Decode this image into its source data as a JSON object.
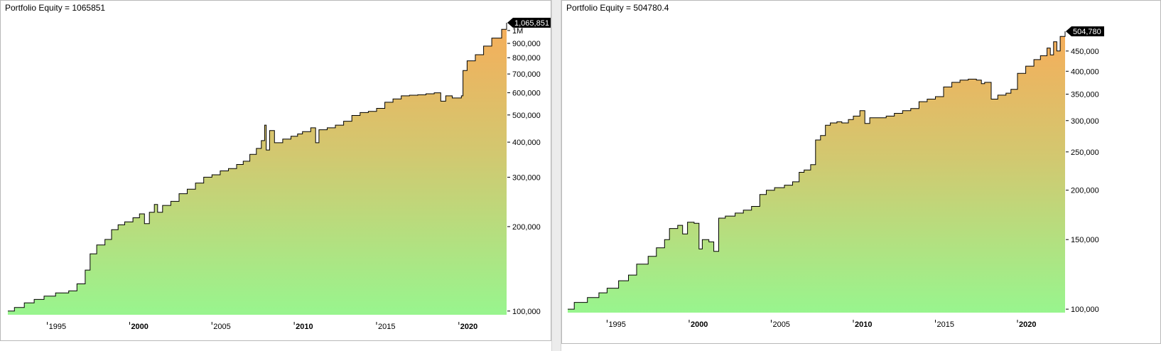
{
  "charts": {
    "left": {
      "title": "Portfolio Equity = 1065851"
    },
    "right": {
      "title": "Portfolio Equity = 504780.4"
    }
  },
  "chart_data": [
    {
      "type": "area",
      "title": "Portfolio Equity = 1065851",
      "yscale": "log",
      "ylim": [
        97000,
        1150000
      ],
      "xlim": [
        1992.6,
        2022.9
      ],
      "yticks": [
        {
          "value": 100000,
          "label": "100,000"
        },
        {
          "value": 200000,
          "label": "200,000"
        },
        {
          "value": 300000,
          "label": "300,000"
        },
        {
          "value": 400000,
          "label": "400,000"
        },
        {
          "value": 500000,
          "label": "500,000"
        },
        {
          "value": 600000,
          "label": "600,000"
        },
        {
          "value": 700000,
          "label": "700,000"
        },
        {
          "value": 800000,
          "label": "800,000"
        },
        {
          "value": 900000,
          "label": "900,000"
        },
        {
          "value": 1000000,
          "label": "1M"
        }
      ],
      "xticks": [
        {
          "value": 1995,
          "label": "1995",
          "bold": false
        },
        {
          "value": 2000,
          "label": "2000",
          "bold": true
        },
        {
          "value": 2005,
          "label": "2005",
          "bold": false
        },
        {
          "value": 2010,
          "label": "2010",
          "bold": true
        },
        {
          "value": 2015,
          "label": "2015",
          "bold": false
        },
        {
          "value": 2020,
          "label": "2020",
          "bold": true
        }
      ],
      "last_value_label": "1,065,851",
      "series": [
        {
          "values": [
            [
              1992.6,
              100000
            ],
            [
              1993.0,
              103000
            ],
            [
              1993.6,
              107000
            ],
            [
              1994.2,
              110000
            ],
            [
              1994.8,
              113000
            ],
            [
              1995.5,
              116000
            ],
            [
              1996.3,
              118000
            ],
            [
              1996.8,
              125000
            ],
            [
              1997.3,
              140000
            ],
            [
              1997.6,
              160000
            ],
            [
              1998.0,
              172000
            ],
            [
              1998.5,
              180000
            ],
            [
              1998.9,
              195000
            ],
            [
              1999.3,
              203000
            ],
            [
              1999.7,
              208000
            ],
            [
              2000.2,
              215000
            ],
            [
              2000.6,
              222000
            ],
            [
              2000.9,
              205000
            ],
            [
              2001.2,
              225000
            ],
            [
              2001.5,
              240000
            ],
            [
              2001.7,
              225000
            ],
            [
              2002.0,
              238000
            ],
            [
              2002.5,
              246000
            ],
            [
              2003.0,
              262000
            ],
            [
              2003.5,
              272000
            ],
            [
              2004.0,
              286000
            ],
            [
              2004.5,
              300000
            ],
            [
              2005.0,
              306000
            ],
            [
              2005.5,
              316000
            ],
            [
              2006.0,
              322000
            ],
            [
              2006.5,
              333000
            ],
            [
              2006.9,
              342000
            ],
            [
              2007.3,
              362000
            ],
            [
              2007.7,
              380000
            ],
            [
              2008.0,
              405000
            ],
            [
              2008.2,
              460000
            ],
            [
              2008.3,
              375000
            ],
            [
              2008.5,
              440000
            ],
            [
              2008.8,
              398000
            ],
            [
              2009.3,
              410000
            ],
            [
              2009.8,
              420000
            ],
            [
              2010.2,
              428000
            ],
            [
              2010.5,
              436000
            ],
            [
              2011.0,
              450000
            ],
            [
              2011.3,
              398000
            ],
            [
              2011.5,
              443000
            ],
            [
              2012.0,
              450000
            ],
            [
              2012.5,
              460000
            ],
            [
              2013.0,
              475000
            ],
            [
              2013.5,
              498000
            ],
            [
              2014.0,
              510000
            ],
            [
              2014.5,
              515000
            ],
            [
              2015.0,
              528000
            ],
            [
              2015.5,
              555000
            ],
            [
              2016.0,
              570000
            ],
            [
              2016.5,
              585000
            ],
            [
              2017.0,
              588000
            ],
            [
              2017.5,
              590000
            ],
            [
              2018.0,
              595000
            ],
            [
              2018.5,
              600000
            ],
            [
              2018.9,
              560000
            ],
            [
              2019.2,
              585000
            ],
            [
              2019.6,
              575000
            ],
            [
              2020.0,
              575000
            ],
            [
              2020.15,
              585000
            ],
            [
              2020.25,
              720000
            ],
            [
              2020.5,
              780000
            ],
            [
              2021.0,
              820000
            ],
            [
              2021.5,
              880000
            ],
            [
              2022.0,
              940000
            ],
            [
              2022.6,
              1010000
            ],
            [
              2022.9,
              1065851
            ]
          ]
        }
      ]
    },
    {
      "type": "area",
      "title": "Portfolio Equity = 504780.4",
      "yscale": "log",
      "ylim": [
        98000,
        560000
      ],
      "xlim": [
        1992.6,
        2022.9
      ],
      "yticks": [
        {
          "value": 100000,
          "label": "100,000"
        },
        {
          "value": 150000,
          "label": "150,000"
        },
        {
          "value": 200000,
          "label": "200,000"
        },
        {
          "value": 250000,
          "label": "250,000"
        },
        {
          "value": 300000,
          "label": "300,000"
        },
        {
          "value": 350000,
          "label": "350,000"
        },
        {
          "value": 400000,
          "label": "400,000"
        },
        {
          "value": 450000,
          "label": "450,000"
        }
      ],
      "xticks": [
        {
          "value": 1995,
          "label": "1995",
          "bold": false
        },
        {
          "value": 2000,
          "label": "2000",
          "bold": true
        },
        {
          "value": 2005,
          "label": "2005",
          "bold": false
        },
        {
          "value": 2010,
          "label": "2010",
          "bold": true
        },
        {
          "value": 2015,
          "label": "2015",
          "bold": false
        },
        {
          "value": 2020,
          "label": "2020",
          "bold": true
        }
      ],
      "last_value_label": "504,780",
      "series": [
        {
          "values": [
            [
              1992.6,
              100000
            ],
            [
              1993.0,
              104000
            ],
            [
              1993.8,
              107000
            ],
            [
              1994.5,
              110000
            ],
            [
              1995.0,
              113000
            ],
            [
              1995.7,
              118000
            ],
            [
              1996.3,
              122000
            ],
            [
              1996.8,
              130000
            ],
            [
              1997.5,
              136000
            ],
            [
              1998.0,
              143000
            ],
            [
              1998.5,
              150000
            ],
            [
              1998.8,
              160000
            ],
            [
              1999.3,
              163000
            ],
            [
              1999.6,
              155000
            ],
            [
              1999.9,
              166000
            ],
            [
              2000.3,
              165000
            ],
            [
              2000.6,
              142000
            ],
            [
              2000.8,
              150000
            ],
            [
              2001.2,
              148000
            ],
            [
              2001.5,
              140000
            ],
            [
              2001.8,
              170000
            ],
            [
              2002.2,
              172000
            ],
            [
              2002.8,
              175000
            ],
            [
              2003.3,
              178000
            ],
            [
              2003.8,
              182000
            ],
            [
              2004.3,
              195000
            ],
            [
              2004.7,
              200000
            ],
            [
              2005.2,
              203000
            ],
            [
              2005.8,
              206000
            ],
            [
              2006.3,
              210000
            ],
            [
              2006.7,
              222000
            ],
            [
              2007.0,
              225000
            ],
            [
              2007.4,
              232000
            ],
            [
              2007.7,
              268000
            ],
            [
              2008.0,
              275000
            ],
            [
              2008.3,
              292000
            ],
            [
              2008.6,
              296000
            ],
            [
              2009.0,
              298000
            ],
            [
              2009.3,
              296000
            ],
            [
              2009.7,
              302000
            ],
            [
              2010.0,
              308000
            ],
            [
              2010.4,
              318000
            ],
            [
              2010.7,
              295000
            ],
            [
              2011.0,
              305000
            ],
            [
              2011.5,
              305000
            ],
            [
              2012.0,
              308000
            ],
            [
              2012.5,
              313000
            ],
            [
              2013.0,
              318000
            ],
            [
              2013.5,
              322000
            ],
            [
              2014.0,
              335000
            ],
            [
              2014.5,
              340000
            ],
            [
              2015.0,
              345000
            ],
            [
              2015.5,
              365000
            ],
            [
              2016.0,
              375000
            ],
            [
              2016.5,
              380000
            ],
            [
              2017.0,
              382000
            ],
            [
              2017.5,
              380000
            ],
            [
              2017.8,
              372000
            ],
            [
              2018.0,
              375000
            ],
            [
              2018.4,
              340000
            ],
            [
              2018.8,
              348000
            ],
            [
              2019.3,
              352000
            ],
            [
              2019.6,
              360000
            ],
            [
              2020.0,
              395000
            ],
            [
              2020.5,
              412000
            ],
            [
              2021.0,
              428000
            ],
            [
              2021.4,
              438000
            ],
            [
              2021.8,
              458000
            ],
            [
              2022.0,
              440000
            ],
            [
              2022.2,
              475000
            ],
            [
              2022.4,
              450000
            ],
            [
              2022.6,
              490000
            ],
            [
              2022.9,
              504780
            ]
          ]
        }
      ]
    }
  ]
}
